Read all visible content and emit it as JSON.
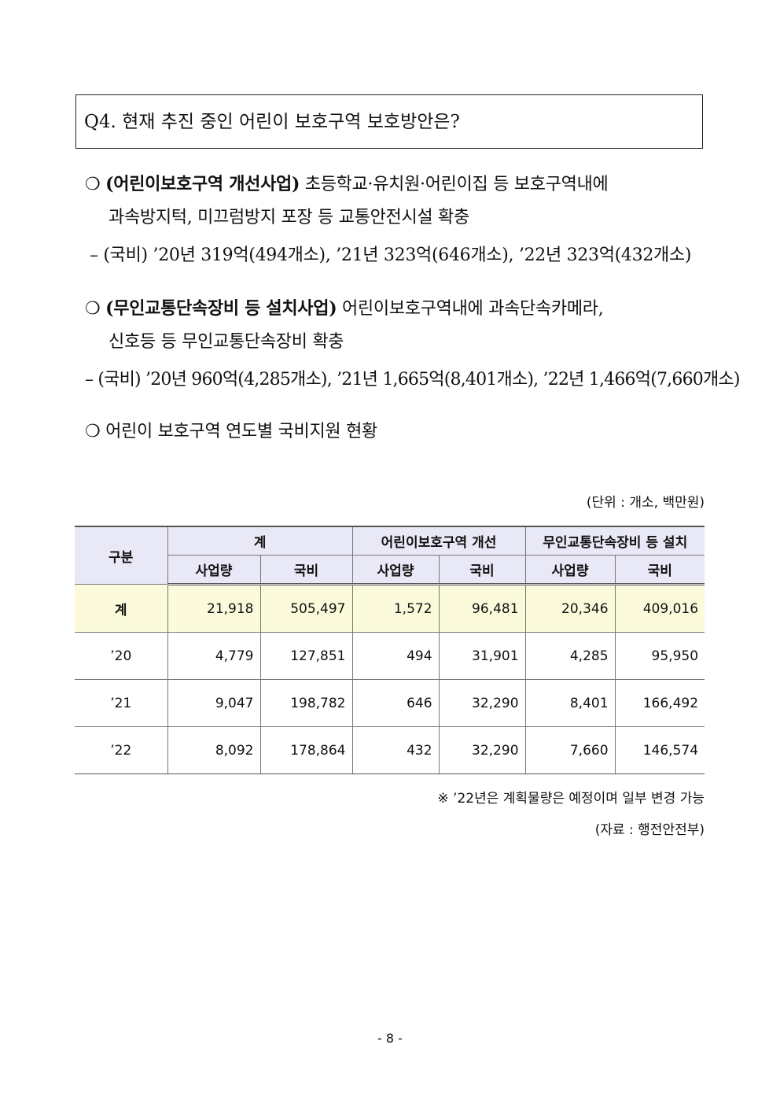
{
  "question": "Q4. 현재 추진 중인 어린이 보호구역 보호방안은?",
  "bullets": [
    {
      "marker": "❍",
      "title": "(어린이보호구역 개선사업)",
      "text": " 초등학교·유치원·어린이집 등 보호구역내에",
      "text2": "과속방지턱, 미끄럼방지 포장 등 교통안전시설 확충",
      "sub": "– (국비) ’20년 319억(494개소), ’21년 323억(646개소), ’22년 323억(432개소)"
    },
    {
      "marker": "❍",
      "title": "(무인교통단속장비 등 설치사업)",
      "text": " 어린이보호구역내에 과속단속카메라,",
      "text2": "신호등 등 무인교통단속장비 확충",
      "sub": "– (국비) ’20년 960억(4,285개소), ’21년 1,665억(8,401개소), ’22년 1,466억(7,660개소)"
    },
    {
      "marker": "❍",
      "text": " 어린이 보호구역 연도별 국비지원 현황"
    }
  ],
  "unit": "(단위 : 개소, 백만원)",
  "table": {
    "col_label": "구분",
    "groups": [
      "계",
      "어린이보호구역 개선",
      "무인교통단속장비 등 설치"
    ],
    "subheaders": [
      "사업량",
      "국비",
      "사업량",
      "국비",
      "사업량",
      "국비"
    ],
    "rows": [
      {
        "label": "계",
        "values": [
          "21,918",
          "505,497",
          "1,572",
          "96,481",
          "20,346",
          "409,016"
        ]
      },
      {
        "label": "’20",
        "values": [
          "4,779",
          "127,851",
          "494",
          "31,901",
          "4,285",
          "95,950"
        ]
      },
      {
        "label": "’21",
        "values": [
          "9,047",
          "198,782",
          "646",
          "32,290",
          "8,401",
          "166,492"
        ]
      },
      {
        "label": "’22",
        "values": [
          "8,092",
          "178,864",
          "432",
          "32,290",
          "7,660",
          "146,574"
        ]
      }
    ]
  },
  "note": "※ ’22년은 계획물량은 예정이며 일부 변경 가능",
  "source": "(자료 : 행전안전부)",
  "page_number": "- 8 -",
  "colors": {
    "header_bg": "#e8e8f6",
    "total_row_bg": "#fbfbdc"
  }
}
